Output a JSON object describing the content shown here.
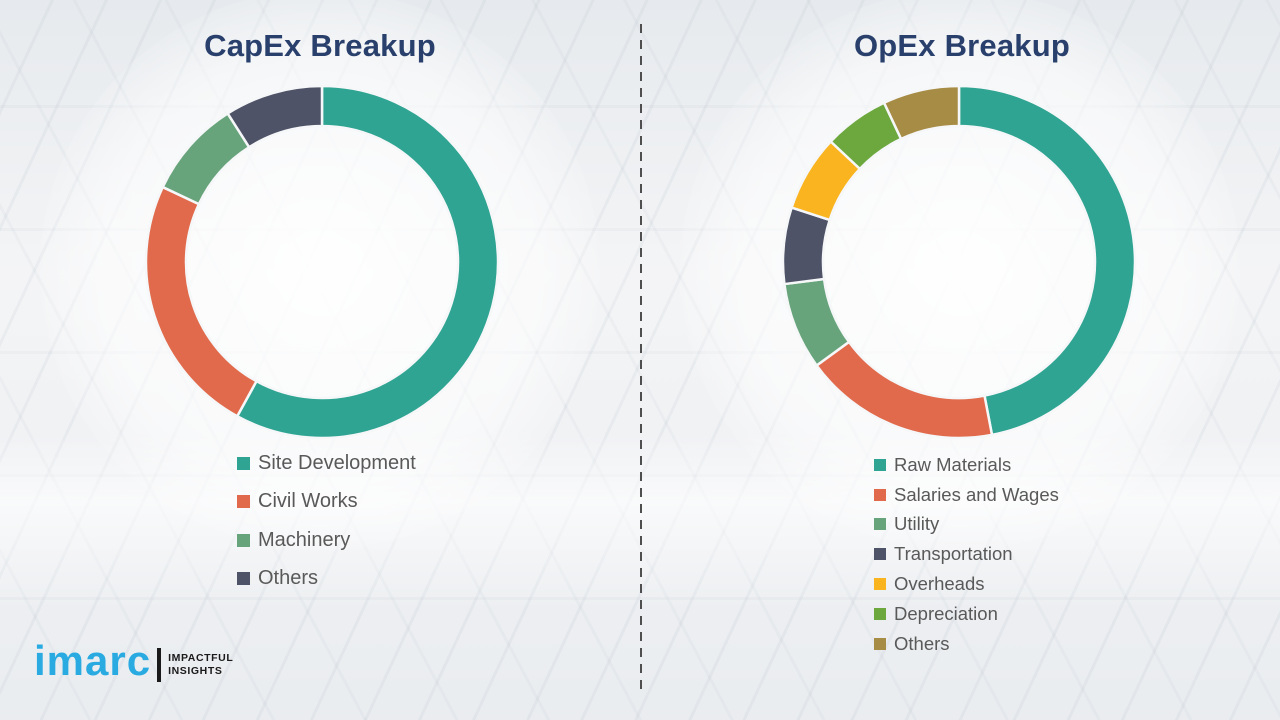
{
  "theme": {
    "title_color": "#29406d",
    "legend_text_color": "#595959",
    "divider_color": "#4f4f4f",
    "background_color": "#f0f1f3",
    "slice_gap_color": "#f6f7f8"
  },
  "chart_data": [
    {
      "type": "pie",
      "donut": true,
      "title": "CapEx Breakup",
      "labels": [
        "Site Development",
        "Civil Works",
        "Machinery",
        "Others"
      ],
      "values": [
        58,
        24,
        9,
        9
      ],
      "colors": [
        "#2fa492",
        "#e06a4b",
        "#68a47b",
        "#4f5368"
      ],
      "start_angle_deg": 0,
      "direction": "clockwise",
      "legend_position": "bottom-left"
    },
    {
      "type": "pie",
      "donut": true,
      "title": "OpEx Breakup",
      "labels": [
        "Raw Materials",
        "Salaries and Wages",
        "Utility",
        "Transportation",
        "Overheads",
        "Depreciation",
        "Others"
      ],
      "values": [
        47,
        18,
        8,
        7,
        7,
        6,
        7
      ],
      "colors": [
        "#2fa492",
        "#e06a4b",
        "#68a47b",
        "#4f5368",
        "#f9b41f",
        "#6ca83e",
        "#a78c46"
      ],
      "start_angle_deg": 0,
      "direction": "clockwise",
      "legend_position": "bottom-left"
    }
  ],
  "logo": {
    "brand": "imarc",
    "tagline_line1": "IMPACTFUL",
    "tagline_line2": "INSIGHTS",
    "brand_color": "#29abe2"
  }
}
